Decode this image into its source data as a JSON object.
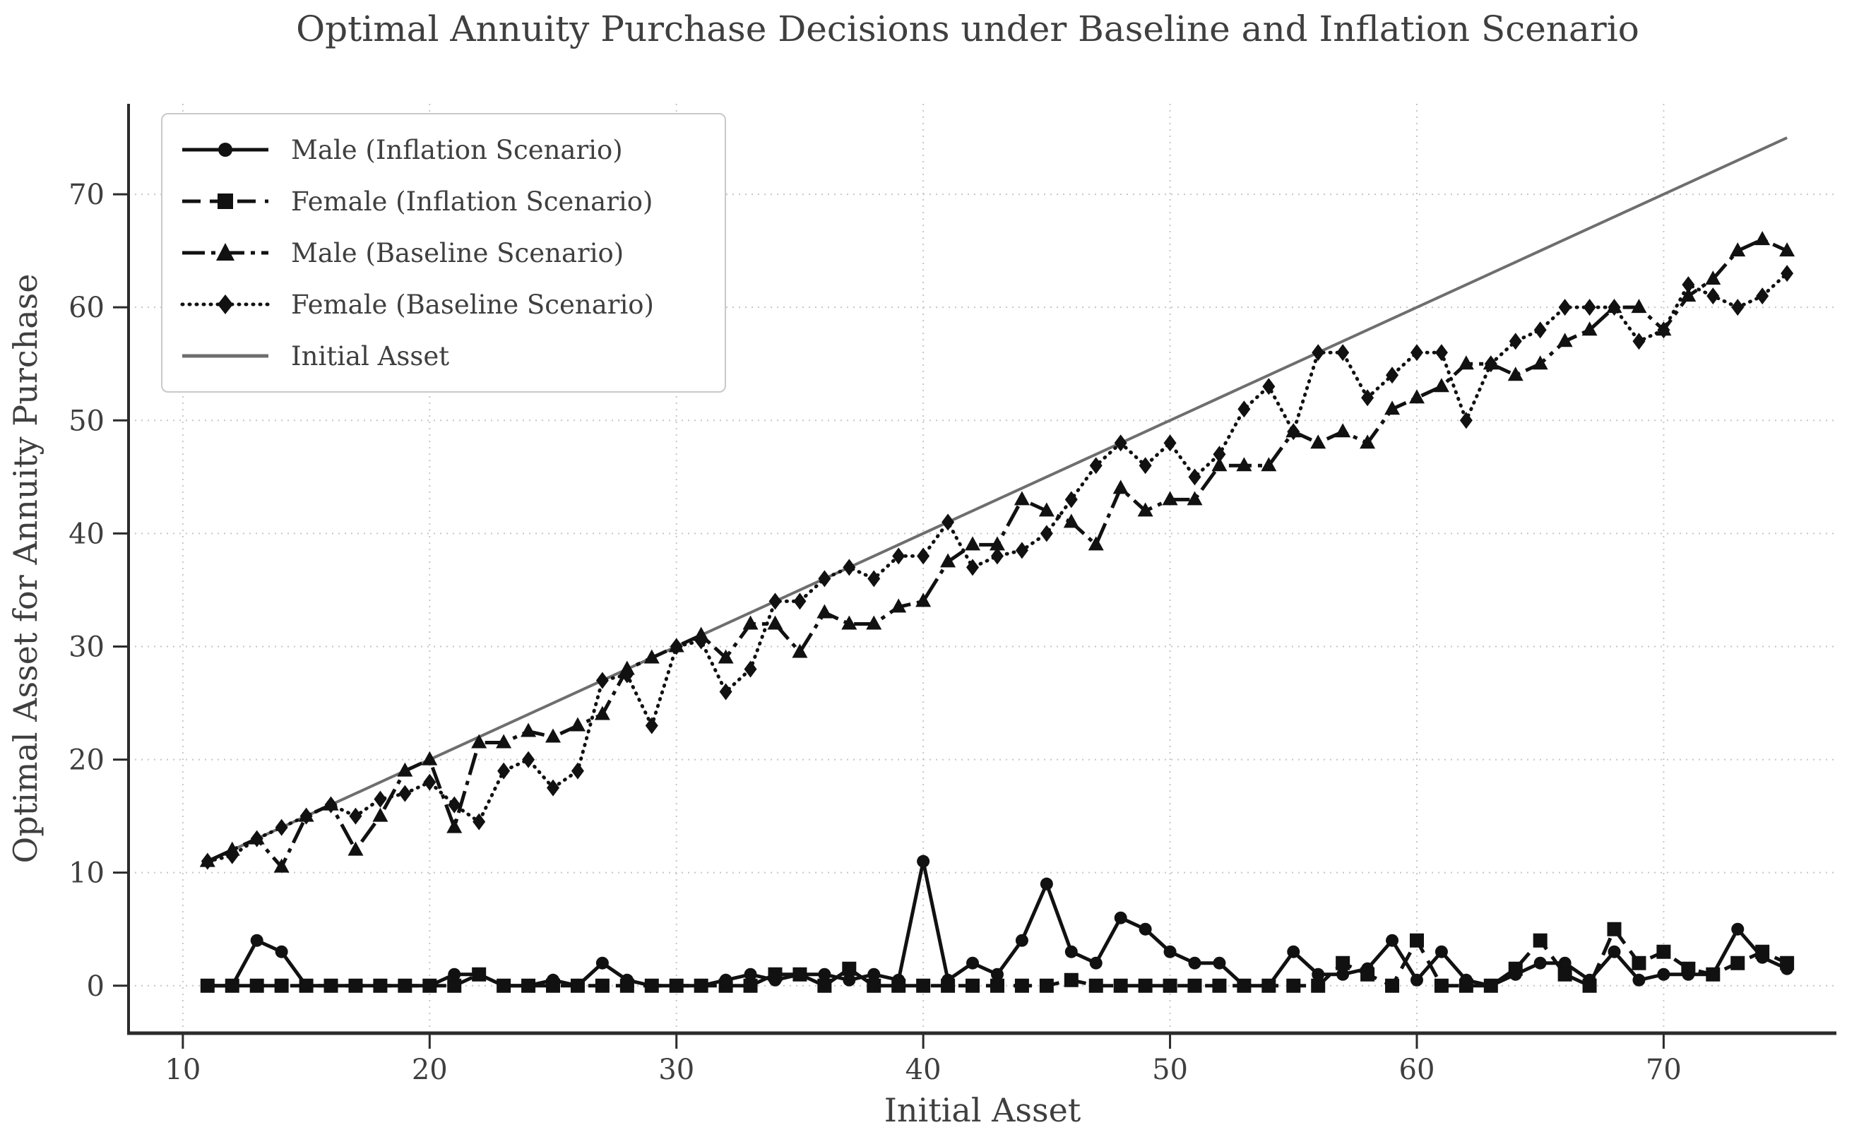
{
  "figure": {
    "title": "Optimal Annuity Purchase Decisions under Baseline and Inflation Scenario",
    "xlabel": "Initial Asset",
    "ylabel": "Optimal Asset for Annuity Purchase"
  },
  "chart_data": {
    "type": "line",
    "title": "Optimal Annuity Purchase Decisions under Baseline and Inflation Scenario",
    "xlabel": "Initial Asset",
    "ylabel": "Optimal Asset for Annuity Purchase",
    "grid": true,
    "legend_position": "upper left",
    "x_ticks": [
      10,
      20,
      30,
      40,
      50,
      60,
      70
    ],
    "y_ticks": [
      0,
      10,
      20,
      30,
      40,
      50,
      60,
      70
    ],
    "xlim": [
      7.8,
      77.0
    ],
    "ylim": [
      -4.2,
      78.0
    ],
    "colors": {
      "series": "#111111",
      "reference_line": "#6e6e6e",
      "grid": "#c6c6c6",
      "text": "#3f3f3f"
    },
    "x": [
      11,
      12,
      13,
      14,
      15,
      16,
      17,
      18,
      19,
      20,
      21,
      22,
      23,
      24,
      25,
      26,
      27,
      28,
      29,
      30,
      31,
      32,
      33,
      34,
      35,
      36,
      37,
      38,
      39,
      40,
      41,
      42,
      43,
      44,
      45,
      46,
      47,
      48,
      49,
      50,
      51,
      52,
      53,
      54,
      55,
      56,
      57,
      58,
      59,
      60,
      61,
      62,
      63,
      64,
      65,
      66,
      67,
      68,
      69,
      70,
      71,
      72,
      73,
      74,
      75
    ],
    "series": [
      {
        "name": "Male (Inflation Scenario)",
        "line": "solid",
        "marker": "circle",
        "color": "#111111",
        "values": [
          0,
          0,
          4,
          3,
          0,
          0,
          0,
          0,
          0,
          0,
          1,
          1,
          0,
          0,
          0.5,
          0,
          2,
          0.5,
          0,
          0,
          0,
          0.5,
          1,
          0.5,
          1,
          1,
          0.5,
          1,
          0.5,
          11,
          0.5,
          2,
          1,
          4,
          9,
          3,
          2,
          6,
          5,
          3,
          2,
          2,
          0,
          0,
          3,
          1,
          1,
          1.5,
          4,
          0.5,
          3,
          0.5,
          0,
          1,
          2,
          2,
          0.5,
          3,
          0.5,
          1,
          1,
          1,
          5,
          2.5,
          1.5
        ]
      },
      {
        "name": "Female (Inflation Scenario)",
        "line": "dashed",
        "marker": "square",
        "color": "#111111",
        "values": [
          0,
          0,
          0,
          0,
          0,
          0,
          0,
          0,
          0,
          0,
          0,
          1,
          0,
          0,
          0,
          0,
          0,
          0,
          0,
          0,
          0,
          0,
          0,
          1,
          1,
          0,
          1.5,
          0,
          0,
          0,
          0,
          0,
          0,
          0,
          0,
          0.5,
          0,
          0,
          0,
          0,
          0,
          0,
          0,
          0,
          0,
          0,
          2,
          1,
          0,
          4,
          0,
          0,
          0,
          1.5,
          4,
          1,
          0,
          5,
          2,
          3,
          1.5,
          1,
          2,
          3,
          2
        ]
      },
      {
        "name": "Male (Baseline Scenario)",
        "line": "dashdot",
        "marker": "triangle",
        "color": "#111111",
        "values": [
          11,
          12,
          13,
          10.5,
          15,
          16,
          12,
          15,
          19,
          20,
          14,
          21.5,
          21.5,
          22.5,
          22,
          23,
          24,
          28,
          29,
          30,
          31,
          29,
          32,
          32,
          29.5,
          33,
          32,
          32,
          33.5,
          34,
          37.5,
          39,
          39,
          43,
          42,
          41,
          39,
          44,
          42,
          43,
          43,
          46,
          46,
          46,
          49,
          48,
          49,
          48,
          51,
          52,
          53,
          55,
          55,
          54,
          55,
          57,
          58,
          60,
          60,
          58,
          61,
          62.5,
          65,
          66,
          65
        ]
      },
      {
        "name": "Female (Baseline Scenario)",
        "line": "dotted",
        "marker": "diamond",
        "color": "#111111",
        "values": [
          11,
          11.5,
          13,
          14,
          15,
          16,
          15,
          16.5,
          17,
          18,
          16,
          14.5,
          19,
          20,
          17.5,
          19,
          27,
          27.5,
          23,
          30,
          30.5,
          26,
          28,
          34,
          34,
          36,
          37,
          36,
          38,
          38,
          41,
          37,
          38,
          38.5,
          40,
          43,
          46,
          48,
          46,
          48,
          45,
          47,
          51,
          53,
          49,
          56,
          56,
          52,
          54,
          56,
          56,
          50,
          55,
          57,
          58,
          60,
          60,
          60,
          57,
          58,
          62,
          61,
          60,
          61,
          63
        ]
      },
      {
        "name": "Initial Asset",
        "line": "solid",
        "marker": "none",
        "color": "#6e6e6e",
        "values": [
          11,
          12,
          13,
          14,
          15,
          16,
          17,
          18,
          19,
          20,
          21,
          22,
          23,
          24,
          25,
          26,
          27,
          28,
          29,
          30,
          31,
          32,
          33,
          34,
          35,
          36,
          37,
          38,
          39,
          40,
          41,
          42,
          43,
          44,
          45,
          46,
          47,
          48,
          49,
          50,
          51,
          52,
          53,
          54,
          55,
          56,
          57,
          58,
          59,
          60,
          61,
          62,
          63,
          64,
          65,
          66,
          67,
          68,
          69,
          70,
          71,
          72,
          73,
          74,
          75
        ]
      }
    ]
  }
}
